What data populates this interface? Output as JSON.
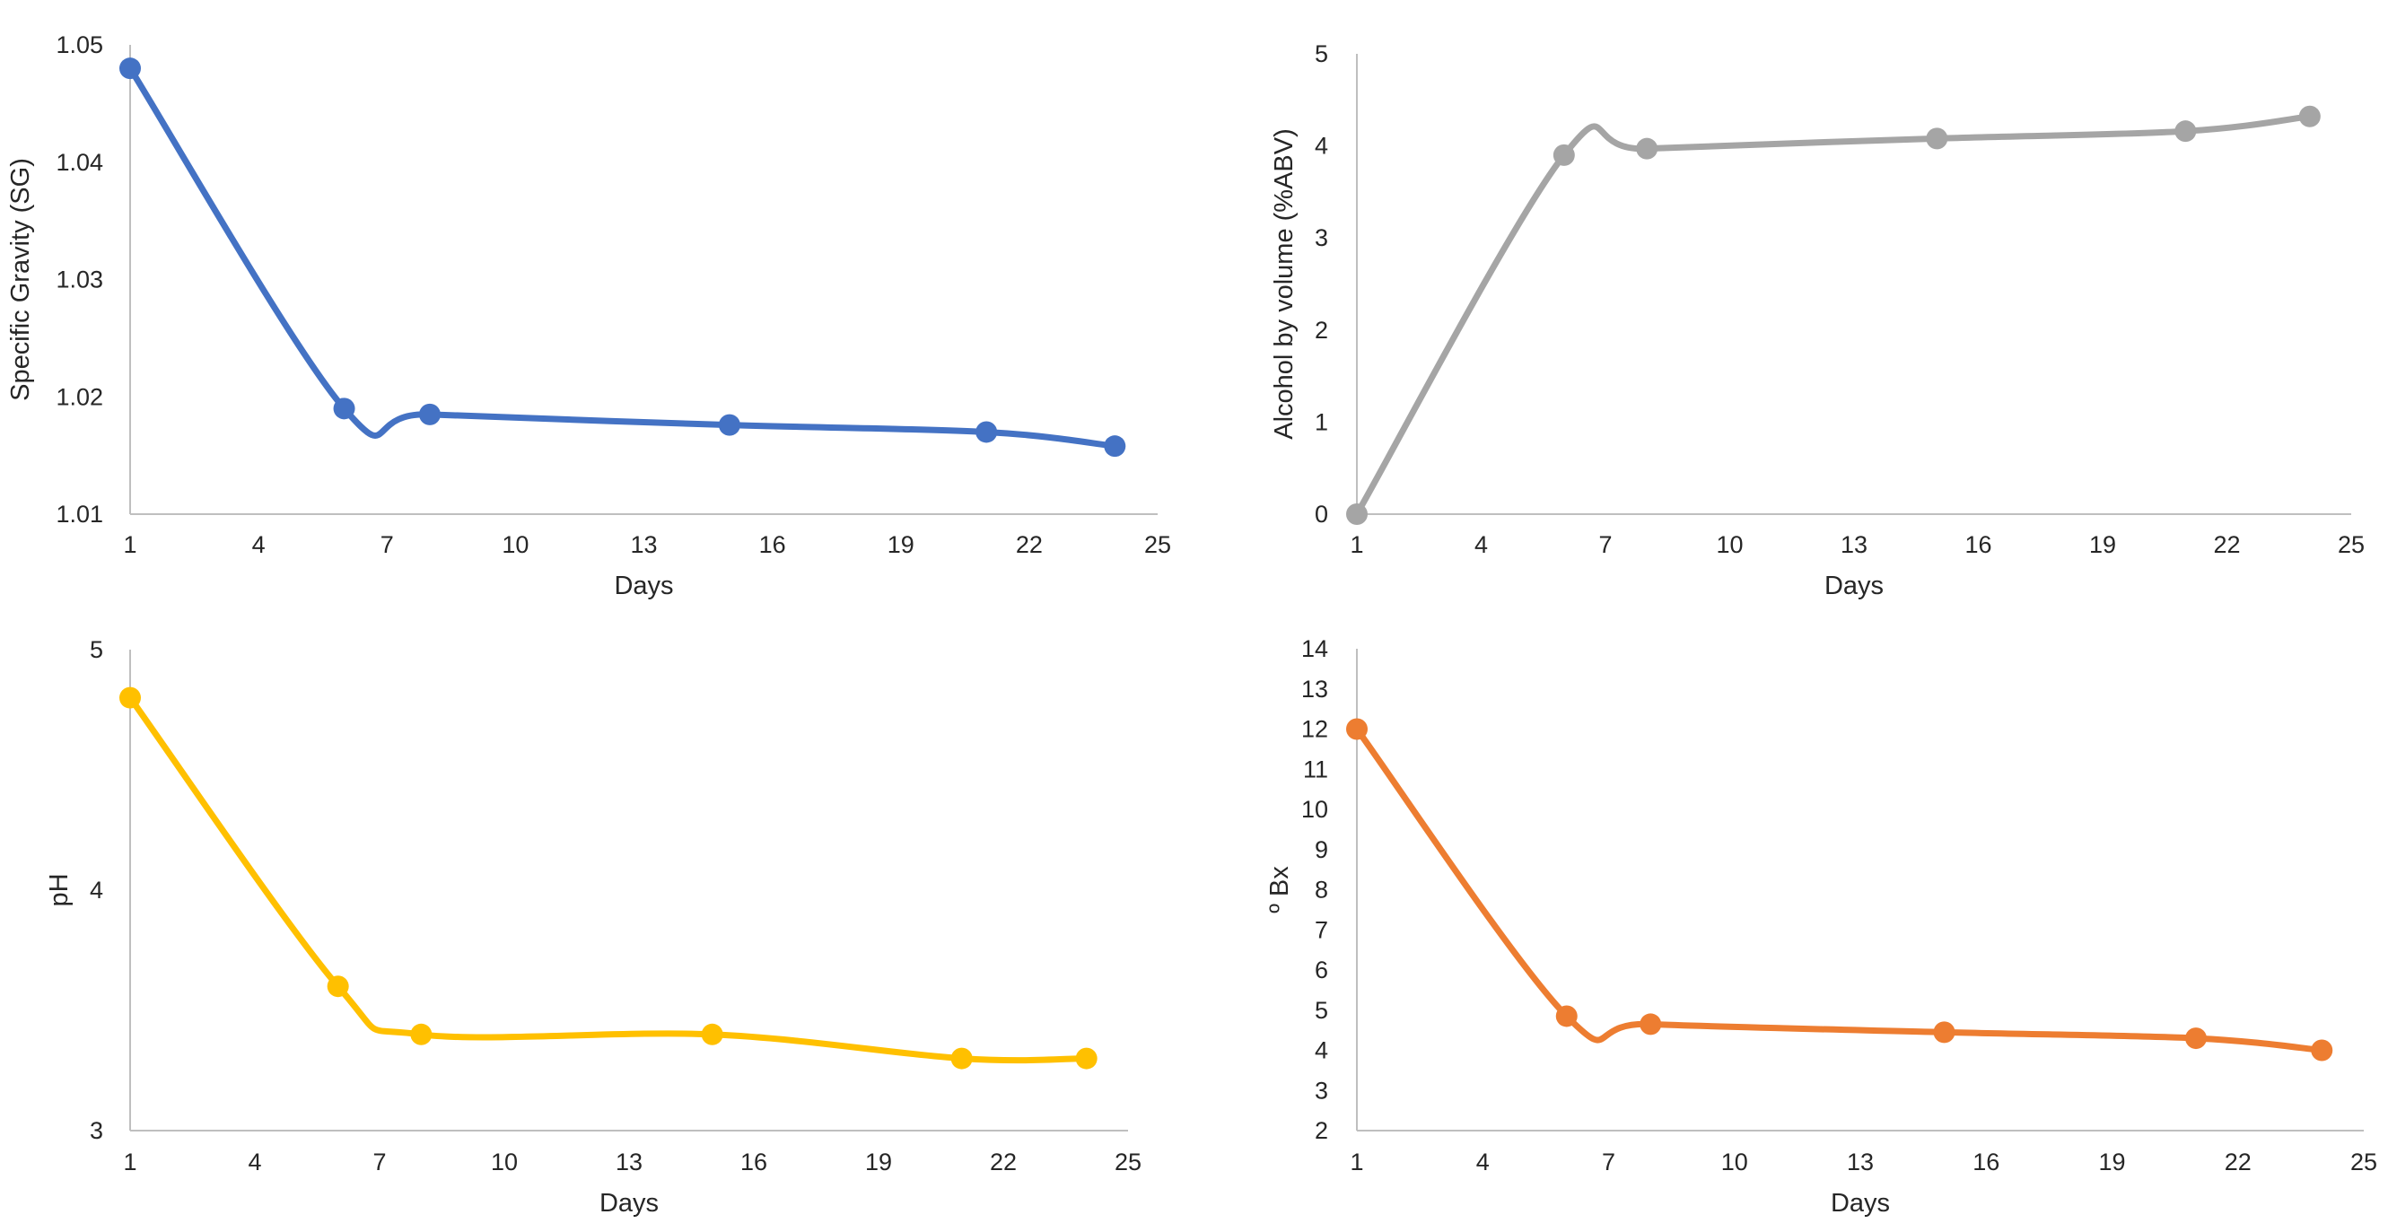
{
  "chart_data": [
    {
      "type": "line",
      "id": "sg",
      "title": "",
      "xlabel": "Days",
      "ylabel": "Specific Gravity (SG)",
      "color": "#4472c4",
      "xlim": [
        1,
        25
      ],
      "xticks": [
        1,
        4,
        7,
        10,
        13,
        16,
        19,
        22,
        25
      ],
      "ylim": [
        1.01,
        1.05
      ],
      "yticks": [
        "1.01",
        "1.02",
        "1.03",
        "1.04",
        "1.05"
      ],
      "x": [
        1,
        6,
        8,
        15,
        21,
        24
      ],
      "values": [
        1.048,
        1.019,
        1.0185,
        1.0176,
        1.017,
        1.0158
      ],
      "smooth": true
    },
    {
      "type": "line",
      "id": "abv",
      "title": "",
      "xlabel": "Days",
      "ylabel": "Alcohol by volume (%ABV)",
      "color": "#a5a5a5",
      "xlim": [
        1,
        25
      ],
      "xticks": [
        1,
        4,
        7,
        10,
        13,
        16,
        19,
        22,
        25
      ],
      "ylim": [
        0,
        5
      ],
      "yticks": [
        "0",
        "1",
        "2",
        "3",
        "4",
        "5"
      ],
      "x": [
        1,
        6,
        8,
        15,
        21,
        24
      ],
      "values": [
        0,
        3.9,
        3.97,
        4.08,
        4.16,
        4.32
      ],
      "smooth": true
    },
    {
      "type": "line",
      "id": "ph",
      "title": "",
      "xlabel": "Days",
      "ylabel": "pH",
      "color": "#ffc000",
      "xlim": [
        1,
        25
      ],
      "xticks": [
        1,
        4,
        7,
        10,
        13,
        16,
        19,
        22,
        25
      ],
      "ylim": [
        3,
        5
      ],
      "yticks": [
        "3",
        "4",
        "5"
      ],
      "x": [
        1,
        6,
        8,
        15,
        21,
        24
      ],
      "values": [
        4.8,
        3.6,
        3.4,
        3.4,
        3.3,
        3.3
      ],
      "smooth": true
    },
    {
      "type": "line",
      "id": "brix",
      "title": "",
      "xlabel": "Days",
      "ylabel": "º Bx",
      "color": "#ed7d31",
      "xlim": [
        1,
        25
      ],
      "xticks": [
        1,
        4,
        7,
        10,
        13,
        16,
        19,
        22,
        25
      ],
      "ylim": [
        2,
        14
      ],
      "yticks": [
        "2",
        "3",
        "4",
        "5",
        "6",
        "7",
        "8",
        "9",
        "10",
        "11",
        "12",
        "13",
        "14"
      ],
      "x": [
        1,
        6,
        8,
        15,
        21,
        24
      ],
      "values": [
        12.0,
        4.85,
        4.65,
        4.45,
        4.3,
        4.0
      ],
      "smooth": true
    }
  ]
}
